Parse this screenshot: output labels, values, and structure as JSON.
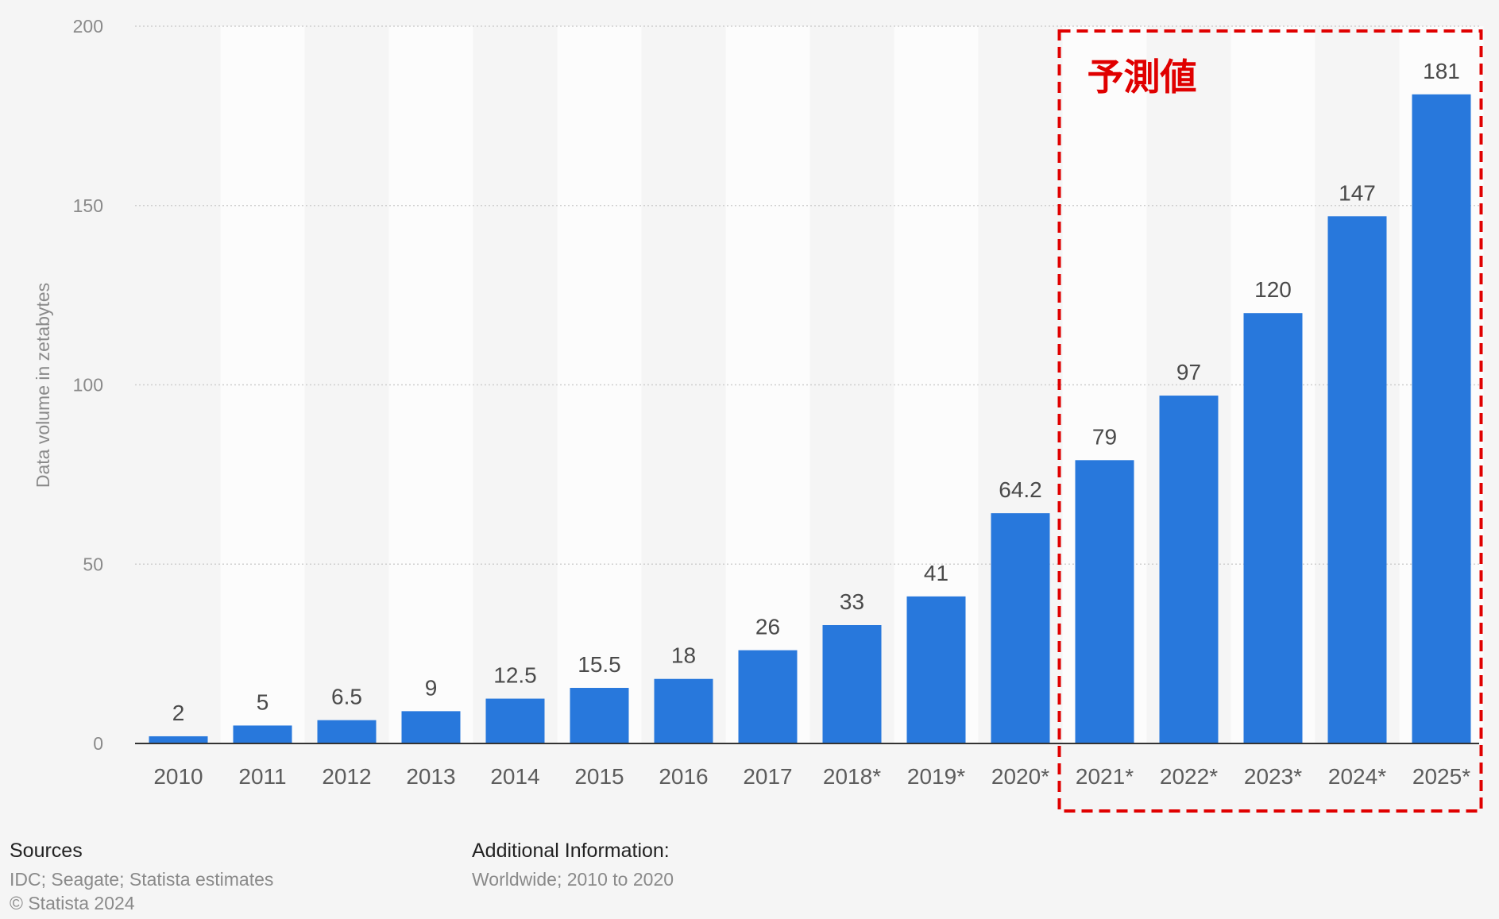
{
  "colors": {
    "background": "#f5f5f5",
    "band": "#fcfcfc",
    "bar": "#2878dc",
    "grid": "#cfcfcf",
    "axis_text": "#8a8a8a",
    "category_text": "#5c5c5c",
    "value_text": "#4a4a4a",
    "forecast": "#e00000"
  },
  "chart_data": {
    "type": "bar",
    "ylabel": "Data volume in zetabytes",
    "xlabel": "",
    "ylim": [
      0,
      200
    ],
    "yticks": [
      0,
      50,
      100,
      150,
      200
    ],
    "grid": true,
    "categories": [
      "2010",
      "2011",
      "2012",
      "2013",
      "2014",
      "2015",
      "2016",
      "2017",
      "2018*",
      "2019*",
      "2020*",
      "2021*",
      "2022*",
      "2023*",
      "2024*",
      "2025*"
    ],
    "values": [
      2,
      5,
      6.5,
      9,
      12.5,
      15.5,
      18,
      26,
      33,
      41,
      64.2,
      79,
      97,
      120,
      147,
      181
    ],
    "value_labels": [
      "2",
      "5",
      "6.5",
      "9",
      "12.5",
      "15.5",
      "18",
      "26",
      "33",
      "41",
      "64.2",
      "79",
      "97",
      "120",
      "147",
      "181"
    ],
    "annotations": [
      {
        "text": "予測値",
        "from_category": "2021*",
        "to_category": "2025*",
        "style": "red-dashed-box"
      }
    ]
  },
  "footer": {
    "sources_title": "Sources",
    "sources_text": "IDC; Seagate; Statista estimates",
    "copyright": "© Statista 2024",
    "additional_title": "Additional Information:",
    "additional_text": "Worldwide; 2010 to 2020"
  }
}
